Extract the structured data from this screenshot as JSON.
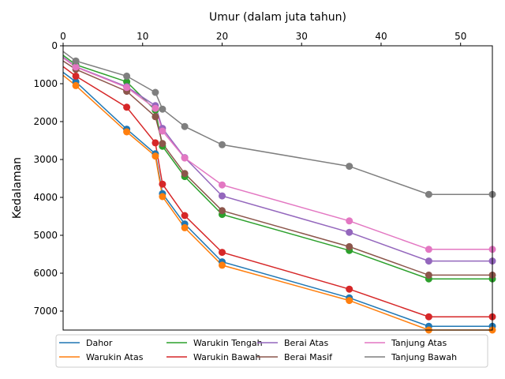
{
  "chart_data": {
    "type": "line",
    "xlabel": "Umur (dalam juta tahun)",
    "ylabel": "Kedalaman",
    "xlim": [
      0,
      54
    ],
    "ylim": [
      7500,
      0
    ],
    "y_inverted": true,
    "x_axis_position": "top",
    "grid": false,
    "legend_position": "bottom",
    "xticks": [
      "0",
      "10",
      "20",
      "30",
      "40",
      "50"
    ],
    "yticks": [
      "0",
      "1000",
      "2000",
      "3000",
      "4000",
      "5000",
      "6000",
      "7000"
    ],
    "xtick_values": [
      0,
      10,
      20,
      30,
      40,
      50
    ],
    "ytick_values": [
      0,
      1000,
      2000,
      3000,
      4000,
      5000,
      6000,
      7000
    ],
    "series": [
      {
        "name": "Dahor",
        "color": "#1f77b4",
        "x": [
          0,
          1.6,
          8,
          11.6,
          12.5,
          15.3,
          20,
          36,
          46,
          54
        ],
        "y": [
          700,
          950,
          2200,
          2850,
          3900,
          4700,
          5700,
          6650,
          7400,
          7400
        ]
      },
      {
        "name": "Warukin Atas",
        "color": "#ff7f0e",
        "x": [
          0,
          1.6,
          8,
          11.6,
          12.5,
          15.3,
          20,
          36,
          46,
          54
        ],
        "y": [
          780,
          1050,
          2270,
          2910,
          3980,
          4800,
          5790,
          6720,
          7500,
          7500
        ]
      },
      {
        "name": "Warukin Tengah",
        "color": "#2ca02c",
        "x": [
          0,
          1.6,
          8,
          11.6,
          12.5,
          15.3,
          20,
          36,
          46,
          54
        ],
        "y": [
          250,
          500,
          950,
          1700,
          2650,
          3450,
          4450,
          5400,
          6150,
          6150
        ]
      },
      {
        "name": "Warukin Bawah",
        "color": "#d62728",
        "x": [
          0,
          1.6,
          8,
          11.6,
          12.5,
          15.3,
          20,
          36,
          46,
          54
        ],
        "y": [
          550,
          800,
          1620,
          2560,
          3650,
          4480,
          5450,
          6420,
          7150,
          7150
        ]
      },
      {
        "name": "Berai Atas",
        "color": "#9467bd",
        "x": [
          0,
          1.6,
          8,
          11.6,
          12.5,
          15.3,
          20,
          36,
          46,
          54
        ],
        "y": [
          300,
          550,
          1080,
          1580,
          2180,
          2950,
          3960,
          4920,
          5680,
          5680
        ]
      },
      {
        "name": "Berai Masif",
        "color": "#8c564b",
        "x": [
          0,
          1.6,
          8,
          11.6,
          12.5,
          15.3,
          20,
          36,
          46,
          54
        ],
        "y": [
          400,
          620,
          1200,
          1870,
          2580,
          3370,
          4350,
          5300,
          6050,
          6050
        ]
      },
      {
        "name": "Tanjung Atas",
        "color": "#e377c2",
        "x": [
          0,
          1.6,
          8,
          11.6,
          12.5,
          15.3,
          20,
          36,
          46,
          54
        ],
        "y": [
          320,
          560,
          1100,
          1650,
          2250,
          2960,
          3670,
          4620,
          5370,
          5370
        ]
      },
      {
        "name": "Tanjung Bawah",
        "color": "#7f7f7f",
        "x": [
          0,
          1.6,
          8,
          11.6,
          12.5,
          15.3,
          20,
          36,
          46,
          54
        ],
        "y": [
          150,
          400,
          800,
          1230,
          1670,
          2130,
          2610,
          3180,
          3920,
          3920
        ]
      }
    ]
  }
}
